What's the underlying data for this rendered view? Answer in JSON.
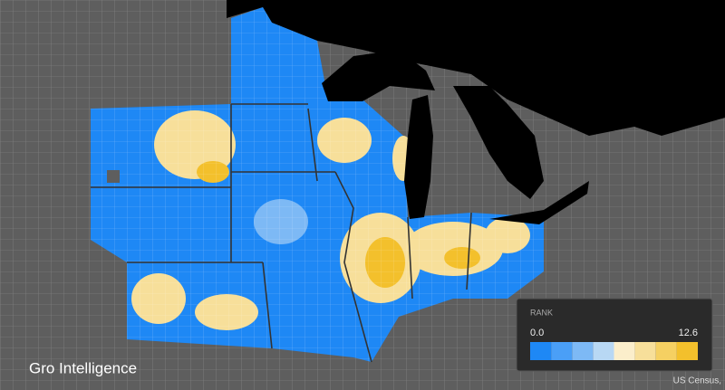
{
  "brand": "Gro Intelligence",
  "attribution": "US Census,",
  "legend": {
    "title": "RANK",
    "min_label": "0.0",
    "max_label": "12.6",
    "colors": [
      "#1e88f5",
      "#4a9ff7",
      "#7db9f5",
      "#b8d8f4",
      "#fbeecb",
      "#f7df9a",
      "#f5d062",
      "#f3c02c"
    ]
  }
}
